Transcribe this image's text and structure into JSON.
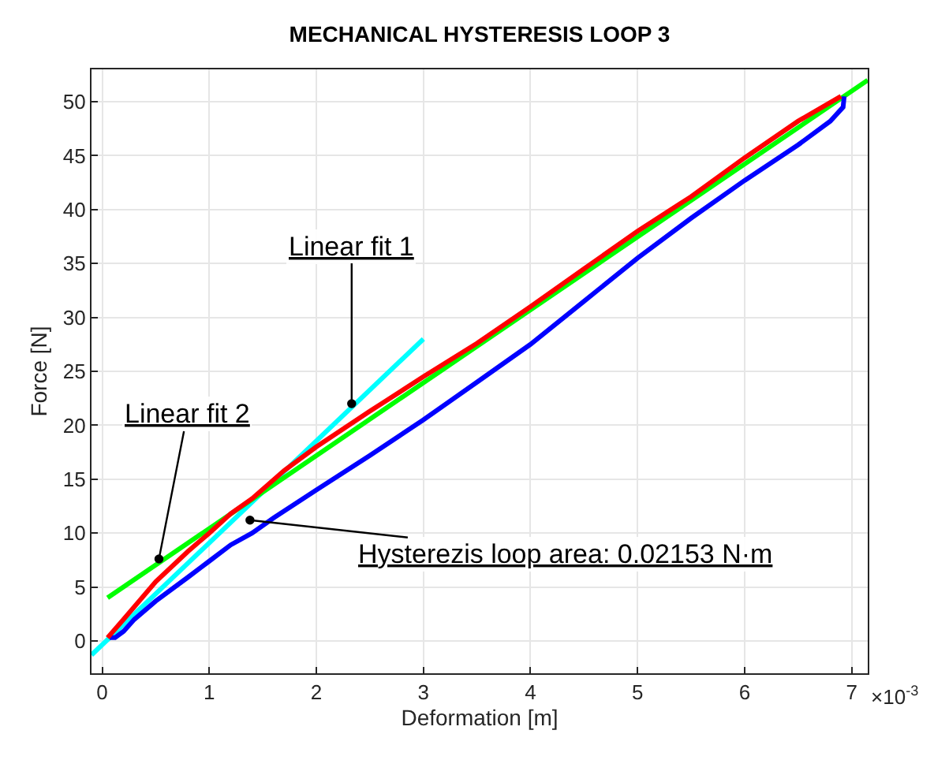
{
  "chart_data": {
    "type": "line",
    "title": "MECHANICAL HYSTERESIS LOOP 3",
    "xlabel": "Deformation [m]",
    "ylabel": "Force [N]",
    "xlim": [
      -0.1,
      7.15
    ],
    "ylim": [
      -3,
      53
    ],
    "xticks": [
      0,
      1,
      2,
      3,
      4,
      5,
      6,
      7
    ],
    "yticks": [
      0,
      5,
      10,
      15,
      20,
      25,
      30,
      35,
      40,
      45,
      50
    ],
    "grid": true,
    "marker": "none",
    "line_style": "solid",
    "series": [
      {
        "color": "#00ffff",
        "x": [
          -0.1,
          3
        ],
        "values": [
          -1.3,
          28
        ]
      },
      {
        "color": "#00ff00",
        "x": [
          0.05,
          7.15
        ],
        "values": [
          4,
          52
        ]
      },
      {
        "color": "#0000ff",
        "x": [
          6.93,
          6.92,
          6.8,
          6.5,
          6,
          5.5,
          5,
          4.5,
          4,
          3.5,
          3,
          2.5,
          2,
          1.6,
          1.4,
          1.2,
          1,
          0.8,
          0.5,
          0.3,
          0.2,
          0.12,
          0.07
        ],
        "values": [
          50.5,
          49.5,
          48.2,
          46,
          42.7,
          39.2,
          35.5,
          31.5,
          27.5,
          24,
          20.5,
          17.2,
          14,
          11.4,
          10,
          8.9,
          7.4,
          5.9,
          3.7,
          2,
          0.9,
          0.3,
          0.3
        ]
      },
      {
        "color": "#ff0000",
        "x": [
          0.05,
          0.2,
          0.5,
          0.8,
          1,
          1.2,
          1.4,
          1.7,
          2,
          2.5,
          3,
          3.5,
          4,
          4.5,
          5,
          5.5,
          6,
          6.5,
          6.9
        ],
        "values": [
          0.3,
          2,
          5.5,
          8.3,
          10,
          11.8,
          13.2,
          15.8,
          18,
          21.3,
          24.5,
          27.6,
          31,
          34.5,
          38,
          41.2,
          44.8,
          48.2,
          50.5
        ]
      }
    ],
    "annotations": [
      {
        "text": "Linear fit 1",
        "x": 2.33,
        "y": 22
      },
      {
        "text": "Linear fit 2",
        "x": 0.53,
        "y": 7.6
      },
      {
        "text": "Hysterezis loop area: 0.02153 N·m",
        "x": 1.38,
        "y": 11.2
      },
      "×10$^{-3}$"
    ]
  }
}
